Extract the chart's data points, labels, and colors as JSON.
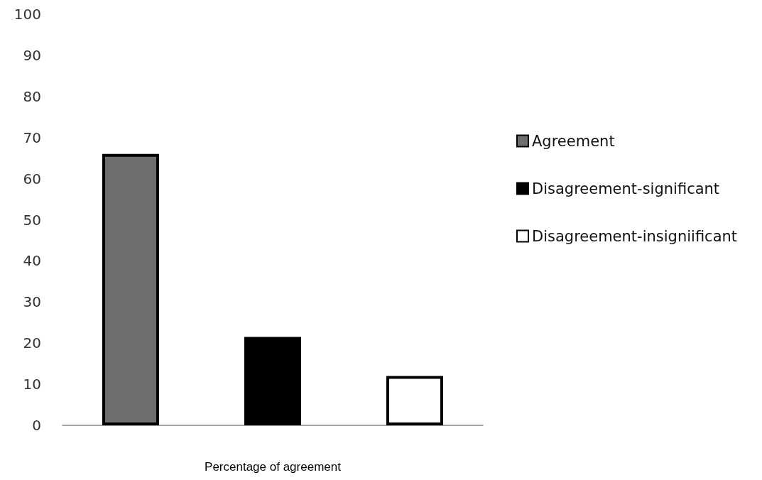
{
  "chart_data": {
    "type": "bar",
    "xlabel": "Percentage of agreement",
    "categories": [
      null
    ],
    "series": [
      {
        "name": "Agreement",
        "color": "#6e6e6e",
        "values": [
          66
        ]
      },
      {
        "name": "Disagreement-significant",
        "color": "#000000",
        "values": [
          21.5
        ]
      },
      {
        "name": "Disagreement-insigniificant",
        "color": "#ffffff",
        "values": [
          12
        ]
      }
    ],
    "ylim": [
      0,
      100
    ],
    "yticks": [
      0,
      10,
      20,
      30,
      40,
      50,
      60,
      70,
      80,
      90,
      100
    ],
    "grid": false,
    "legend": "right"
  }
}
